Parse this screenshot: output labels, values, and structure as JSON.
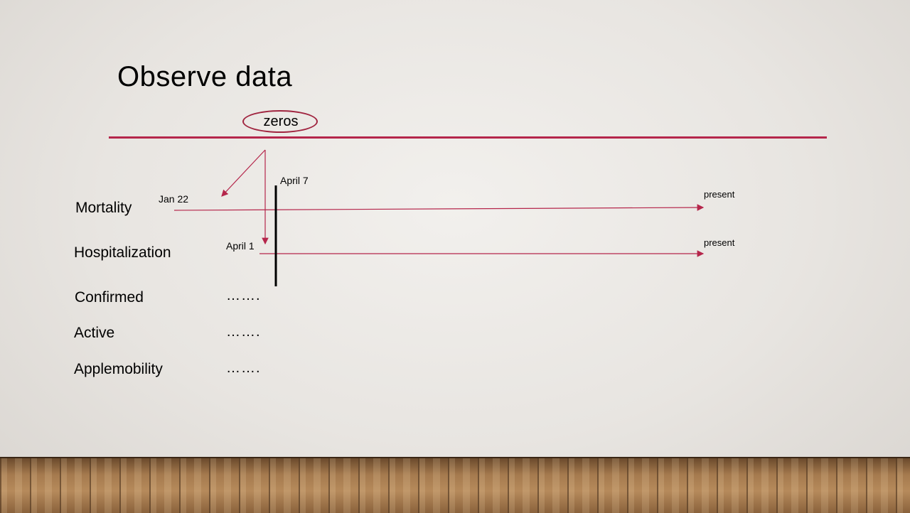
{
  "title": "Observe data",
  "callout": "zeros",
  "rows": [
    {
      "label": "Mortality"
    },
    {
      "label": "Hospitalization"
    },
    {
      "label": "Confirmed",
      "continuation": "……."
    },
    {
      "label": "Active",
      "continuation": "……."
    },
    {
      "label": "Applemobility",
      "continuation": "……."
    }
  ],
  "timeline": {
    "mortality_start": "Jan 22",
    "hospitalization_start": "April 1",
    "marker": "April 7",
    "end_mortality": "present",
    "end_hospitalization": "present"
  },
  "colors": {
    "accent": "#b5264b",
    "marker": "#000000"
  }
}
